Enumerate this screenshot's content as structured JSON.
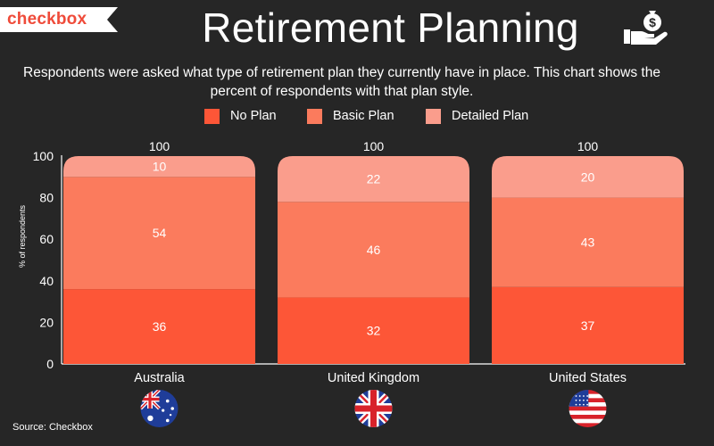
{
  "brand": {
    "name": "checkbox"
  },
  "title": "Retirement Planning",
  "subtitle": "Respondents were asked what type of retirement plan they currently have in place. This chart shows the percent of respondents with that plan style.",
  "icons": [
    "money-hand-icon",
    "flag-australia-icon",
    "flag-uk-icon",
    "flag-us-icon"
  ],
  "colors": {
    "background": "#262626",
    "brand": "#ef4b3a",
    "no_plan": "#fd5637",
    "basic_plan": "#fb7b5d",
    "detailed_plan": "#fa9d8c"
  },
  "source": "Source: Checkbox",
  "chart_data": {
    "type": "bar",
    "stacked": true,
    "categories": [
      "Australia",
      "United Kingdom",
      "United States"
    ],
    "series": [
      {
        "name": "No Plan",
        "values": [
          36,
          32,
          37
        ],
        "color": "#fd5637"
      },
      {
        "name": "Basic Plan",
        "values": [
          54,
          46,
          43
        ],
        "color": "#fb7b5d"
      },
      {
        "name": "Detailed Plan",
        "values": [
          10,
          22,
          20
        ],
        "color": "#fa9d8c"
      }
    ],
    "totals": [
      100,
      100,
      100
    ],
    "title": "Retirement Planning",
    "xlabel": "",
    "ylabel": "% of respondents",
    "ylim": [
      0,
      100
    ],
    "yticks": [
      0,
      20,
      40,
      60,
      80,
      100
    ],
    "grid": false,
    "legend": "top-center"
  }
}
